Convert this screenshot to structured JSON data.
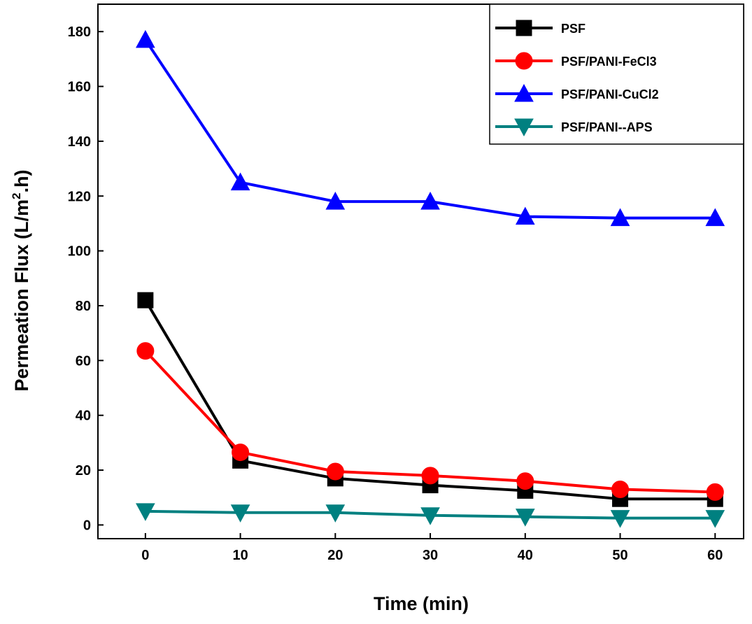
{
  "chart_data": {
    "type": "line",
    "title": "",
    "xlabel": "Time (min)",
    "ylabel_prefix": "Permeation Flux (L/m",
    "ylabel_sup": "2",
    "ylabel_suffix": ".h)",
    "x": [
      0,
      10,
      20,
      30,
      40,
      50,
      60
    ],
    "xlim": [
      -5,
      63
    ],
    "ylim": [
      -5,
      190
    ],
    "xticks": [
      0,
      10,
      20,
      30,
      40,
      50,
      60
    ],
    "yticks": [
      0,
      20,
      40,
      60,
      80,
      100,
      120,
      140,
      160,
      180
    ],
    "grid": false,
    "legend_position": "top-right",
    "series": [
      {
        "name": "PSF",
        "color": "#000000",
        "marker": "square",
        "values": [
          82,
          23.5,
          17,
          14.5,
          12.5,
          9.5,
          9.5
        ]
      },
      {
        "name": "PSF/PANI-FeCl3",
        "color": "#ff0000",
        "marker": "circle",
        "values": [
          63.5,
          26.5,
          19.5,
          18,
          16,
          13,
          12
        ]
      },
      {
        "name": "PSF/PANI-CuCl2",
        "color": "#0000ff",
        "marker": "triangle-up",
        "values": [
          177,
          125,
          118,
          118,
          112.5,
          112,
          112
        ]
      },
      {
        "name": "PSF/PANI--APS",
        "color": "#008080",
        "marker": "triangle-down",
        "values": [
          5,
          4.5,
          4.5,
          3.5,
          3,
          2.5,
          2.5
        ]
      }
    ]
  }
}
